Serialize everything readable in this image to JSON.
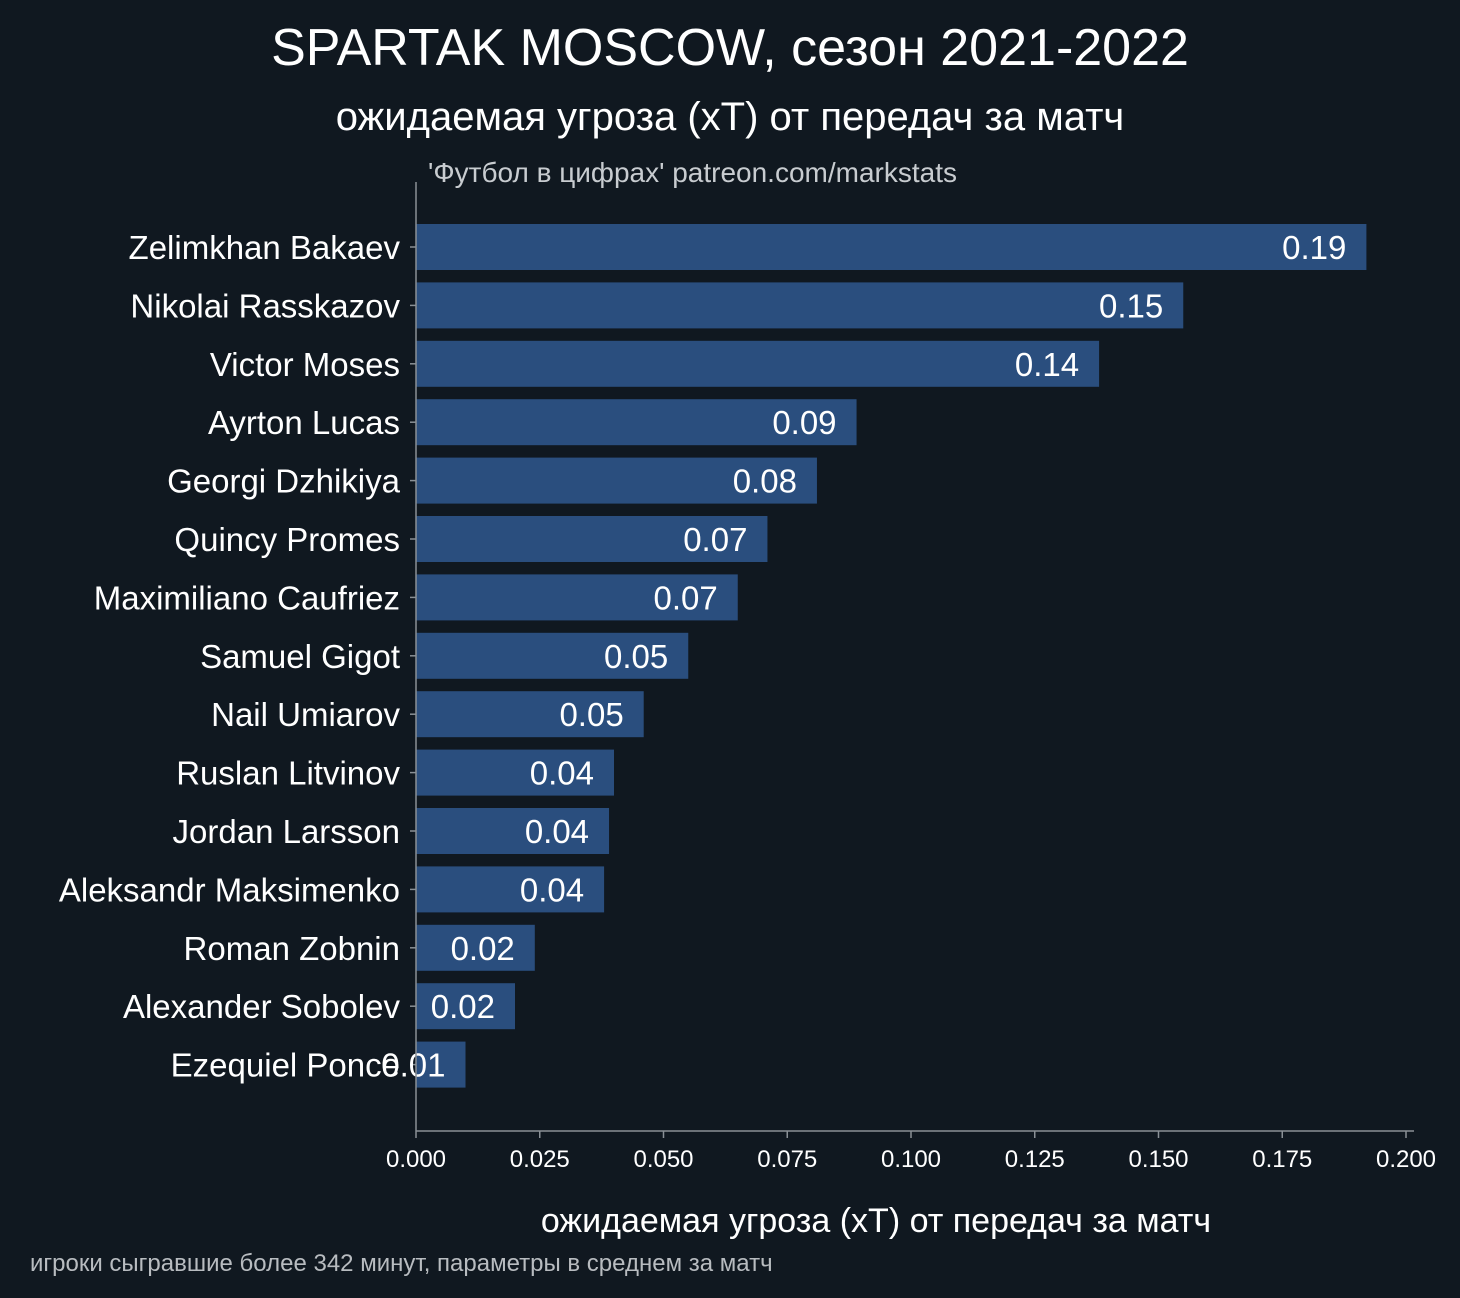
{
  "colors": {
    "background": "#101820",
    "bar": "#2a4e7e",
    "text": "#ffffff",
    "axis": "#8a9096"
  },
  "chart_data": {
    "type": "bar",
    "orientation": "horizontal",
    "title": "SPARTAK MOSCOW, сезон 2021-2022",
    "subtitle": "ожидаемая угроза (xT) от передач за матч",
    "source": "'Футбол в цифрах' patreon.com/markstats",
    "xlabel": "ожидаемая угроза (xT) от передач за матч",
    "footnote": "игроки сыгравшие более 342 минут, параметры в среднем за матч",
    "xlim": [
      0,
      0.2
    ],
    "x_ticks": [
      "0.000",
      "0.025",
      "0.050",
      "0.075",
      "0.100",
      "0.125",
      "0.150",
      "0.175",
      "0.200"
    ],
    "grid": false,
    "categories": [
      "Zelimkhan Bakaev",
      "Nikolai Rasskazov",
      "Victor Moses",
      "Ayrton Lucas",
      "Georgi Dzhikiya",
      "Quincy Promes",
      "Maximiliano Caufriez",
      "Samuel Gigot",
      "Nail Umiarov",
      "Ruslan Litvinov",
      "Jordan Larsson",
      "Aleksandr Maksimenko",
      "Roman Zobnin",
      "Alexander Sobolev",
      "Ezequiel Ponce"
    ],
    "values": [
      0.192,
      0.155,
      0.138,
      0.089,
      0.081,
      0.071,
      0.065,
      0.055,
      0.046,
      0.04,
      0.039,
      0.038,
      0.024,
      0.02,
      0.01
    ],
    "value_labels": [
      "0.19",
      "0.15",
      "0.14",
      "0.09",
      "0.08",
      "0.07",
      "0.07",
      "0.05",
      "0.05",
      "0.04",
      "0.04",
      "0.04",
      "0.02",
      "0.02",
      "0.01"
    ]
  }
}
